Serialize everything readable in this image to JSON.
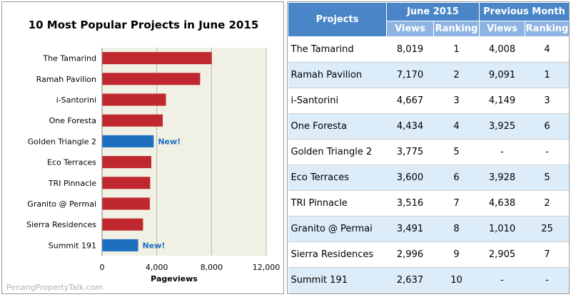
{
  "chart_data": {
    "type": "bar",
    "orientation": "horizontal",
    "title": "10 Most Popular Projects in June 2015",
    "xlabel": "Pageviews",
    "ylabel": "",
    "xlim": [
      0,
      12000
    ],
    "ticks": [
      "0",
      "4,000",
      "8,000",
      "12,000"
    ],
    "tick_values": [
      0,
      4000,
      8000,
      12000
    ],
    "grid": true,
    "categories": [
      "The Tamarind",
      "Ramah Pavilion",
      "i-Santorini",
      "One Foresta",
      "Golden Triangle 2",
      "Eco Terraces",
      "TRI Pinnacle",
      "Granito @ Permai",
      "Sierra Residences",
      "Summit 191"
    ],
    "values": [
      8019,
      7170,
      4667,
      4434,
      3775,
      3600,
      3516,
      3491,
      2996,
      2637
    ],
    "new_flags": [
      false,
      false,
      false,
      false,
      true,
      false,
      false,
      false,
      false,
      true
    ],
    "new_label": "New!",
    "colors": {
      "default": "#c0282f",
      "new": "#1f6fbf",
      "plot_bg": "#f0f0e4",
      "grid": "#b8b8a8"
    }
  },
  "watermark": "PenangPropertyTalk.com",
  "table": {
    "header_projects": "Projects",
    "header_june": "June 2015",
    "header_prev": "Previous Month",
    "sub_views": "Views",
    "sub_ranking": "Ranking",
    "rows": [
      {
        "name": "The Tamarind",
        "june_views": "8,019",
        "june_rank": "1",
        "prev_views": "4,008",
        "prev_rank": "4"
      },
      {
        "name": "Ramah Pavilion",
        "june_views": "7,170",
        "june_rank": "2",
        "prev_views": "9,091",
        "prev_rank": "1"
      },
      {
        "name": "i-Santorini",
        "june_views": "4,667",
        "june_rank": "3",
        "prev_views": "4,149",
        "prev_rank": "3"
      },
      {
        "name": "One Foresta",
        "june_views": "4,434",
        "june_rank": "4",
        "prev_views": "3,925",
        "prev_rank": "6"
      },
      {
        "name": "Golden Triangle 2",
        "june_views": "3,775",
        "june_rank": "5",
        "prev_views": "-",
        "prev_rank": "-"
      },
      {
        "name": "Eco Terraces",
        "june_views": "3,600",
        "june_rank": "6",
        "prev_views": "3,928",
        "prev_rank": "5"
      },
      {
        "name": "TRI Pinnacle",
        "june_views": "3,516",
        "june_rank": "7",
        "prev_views": "4,638",
        "prev_rank": "2"
      },
      {
        "name": "Granito @ Permai",
        "june_views": "3,491",
        "june_rank": "8",
        "prev_views": "1,010",
        "prev_rank": "25"
      },
      {
        "name": "Sierra Residences",
        "june_views": "2,996",
        "june_rank": "9",
        "prev_views": "2,905",
        "prev_rank": "7"
      },
      {
        "name": "Summit 191",
        "june_views": "2,637",
        "june_rank": "10",
        "prev_views": "-",
        "prev_rank": "-"
      }
    ]
  }
}
